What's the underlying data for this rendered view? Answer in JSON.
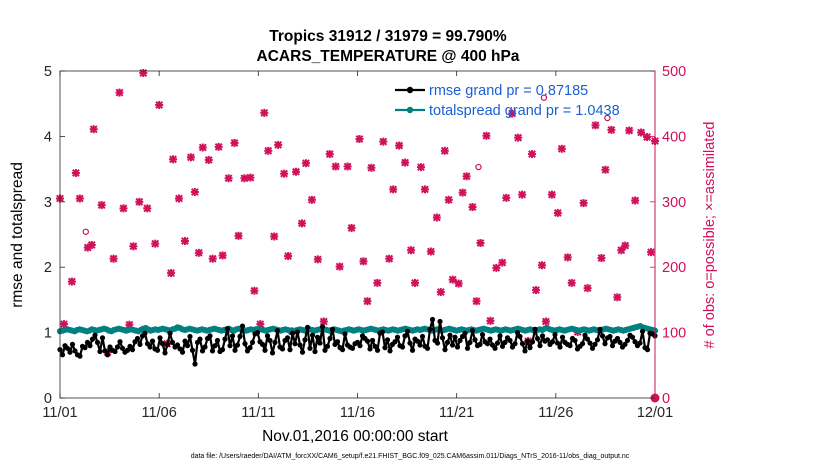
{
  "chart_data": {
    "type": "line",
    "title_line1": "Tropics 31912 / 31979 = 99.790%",
    "title_line2": "ACARS_TEMPERATURE @ 400 hPa",
    "xlabel": "Nov.01,2016 00:00:00 start",
    "ylabel_left": "rmse and totalspread",
    "ylabel_right": "# of obs: o=possible; ×=assimilated",
    "footnote": "data file: /Users/raeder/DAI/ATM_forcXX/CAM6_setup/f.e21.FHIST_BGC.f09_025.CAM6assim.011/Diags_NTrS_2016-11/obs_diag_output.nc",
    "x_ticks": [
      "11/01",
      "11/06",
      "11/11",
      "11/16",
      "11/21",
      "11/26",
      "12/01"
    ],
    "xlim_days": [
      0,
      30
    ],
    "ylim_left": [
      0,
      5
    ],
    "y_ticks_left": [
      "0",
      "1",
      "2",
      "3",
      "4",
      "5"
    ],
    "ylim_right": [
      0,
      500
    ],
    "y_ticks_right": [
      "0",
      "100",
      "200",
      "300",
      "400",
      "500"
    ],
    "legend": {
      "placement": "top-right",
      "entries": [
        "rmse grand pr = 0.87185",
        "totalspread grand pr = 1.0438"
      ]
    },
    "colors": {
      "rmse": "#000000",
      "spread": "#008080",
      "obs": "#d0105a"
    },
    "series": [
      {
        "name": "rmse",
        "axis": "left",
        "values": [
          0.74,
          0.66,
          0.8,
          0.76,
          0.7,
          0.82,
          0.72,
          0.66,
          0.64,
          0.79,
          0.77,
          0.85,
          0.8,
          0.9,
          0.96,
          0.85,
          0.71,
          0.92,
          0.72,
          0.66,
          0.78,
          0.73,
          0.71,
          0.78,
          0.86,
          0.76,
          0.7,
          0.73,
          0.79,
          0.74,
          0.86,
          0.91,
          0.82,
          0.95,
          0.99,
          0.83,
          0.78,
          0.87,
          0.75,
          0.73,
          0.92,
          0.83,
          0.69,
          0.82,
          0.99,
          0.85,
          0.78,
          0.81,
          0.75,
          0.7,
          0.87,
          0.8,
          0.94,
          0.73,
          0.52,
          0.85,
          0.9,
          0.72,
          0.78,
          0.91,
          0.95,
          0.72,
          0.8,
          0.88,
          0.71,
          0.74,
          0.9,
          1.06,
          0.8,
          0.95,
          0.73,
          0.81,
          0.94,
          1.1,
          0.83,
          0.72,
          0.77,
          0.85,
          0.98,
          1.0,
          0.86,
          0.82,
          0.73,
          0.95,
          0.88,
          0.69,
          0.85,
          1.03,
          0.78,
          0.75,
          0.88,
          0.92,
          0.74,
          0.99,
          0.83,
          1.01,
          0.81,
          0.7,
          0.89,
          1.08,
          0.76,
          0.96,
          0.71,
          0.93,
          0.84,
          1.09,
          0.73,
          0.79,
          0.91,
          1.05,
          0.82,
          0.86,
          0.77,
          0.74,
          0.98,
          0.81,
          0.78,
          0.76,
          0.83,
          0.85,
          0.8,
          0.95,
          0.91,
          0.87,
          0.75,
          0.88,
          0.79,
          0.73,
          0.99,
          1.01,
          0.77,
          0.89,
          0.72,
          0.82,
          0.86,
          0.93,
          0.8,
          0.78,
          0.95,
          1.02,
          0.84,
          0.73,
          0.9,
          0.87,
          0.81,
          0.94,
          0.79,
          0.76,
          1.05,
          1.2,
          0.88,
          0.84,
          1.17,
          0.92,
          0.74,
          0.85,
          0.96,
          0.81,
          0.93,
          0.78,
          0.88,
          0.94,
          0.99,
          0.76,
          0.85,
          1.03,
          0.89,
          0.8,
          0.82,
          0.97,
          0.86,
          0.83,
          0.9,
          0.81,
          0.76,
          0.84,
          0.95,
          0.79,
          0.85,
          0.92,
          0.88,
          0.78,
          0.83,
          1.0,
          0.94,
          0.83,
          0.72,
          0.87,
          0.77,
          0.86,
          1.05,
          0.91,
          0.8,
          0.95,
          0.87,
          0.89,
          0.82,
          0.86,
          0.97,
          0.84,
          0.78,
          0.93,
          0.85,
          0.82,
          0.8,
          0.91,
          0.88,
          0.75,
          0.79,
          0.83,
          0.96,
          0.9,
          0.84,
          0.76,
          0.82,
          0.89,
          1.05,
          0.95,
          0.83,
          0.92,
          0.94,
          0.8,
          0.87,
          0.91,
          0.85,
          0.78,
          0.82,
          0.88,
          0.96,
          0.93,
          0.86,
          0.8,
          0.84,
          1.02,
          0.77,
          0.74,
          0.99,
          0.98,
          0.95
        ]
      },
      {
        "name": "totalspread",
        "axis": "left",
        "values": [
          1.02,
          1.03,
          1.04,
          1.05,
          1.04,
          1.03,
          1.02,
          1.04,
          1.05,
          1.04,
          1.03,
          1.02,
          1.03,
          1.05,
          1.04,
          1.03,
          1.04,
          1.05,
          1.06,
          1.05,
          1.03,
          1.02,
          1.04,
          1.05,
          1.06,
          1.05,
          1.04,
          1.03,
          1.04,
          1.05,
          1.04,
          1.03,
          1.02,
          1.04,
          1.06,
          1.07,
          1.05,
          1.03,
          1.04,
          1.05,
          1.04,
          1.05,
          1.06,
          1.05,
          1.04,
          1.03,
          1.05,
          1.06,
          1.08,
          1.07,
          1.05,
          1.04,
          1.05,
          1.06,
          1.05,
          1.04,
          1.03,
          1.04,
          1.05,
          1.04,
          1.03,
          1.04,
          1.05,
          1.06,
          1.05,
          1.04,
          1.03,
          1.04,
          1.05,
          1.06,
          1.04,
          1.03,
          1.05,
          1.06,
          1.05,
          1.04,
          1.03,
          1.04,
          1.05,
          1.04,
          1.05,
          1.06,
          1.05,
          1.04,
          1.03,
          1.04,
          1.05,
          1.06,
          1.05,
          1.04,
          1.03,
          1.04,
          1.05,
          1.04,
          1.03,
          1.02,
          1.03,
          1.04,
          1.05,
          1.04,
          1.03,
          1.04,
          1.05,
          1.04,
          1.03,
          1.04,
          1.05,
          1.06,
          1.05,
          1.04,
          1.03,
          1.04,
          1.05,
          1.04,
          1.03,
          1.02,
          1.03,
          1.04,
          1.05,
          1.04,
          1.03,
          1.04,
          1.05,
          1.04,
          1.03,
          1.04,
          1.05,
          1.06,
          1.05,
          1.04,
          1.03,
          1.04,
          1.05,
          1.04,
          1.03,
          1.04,
          1.05,
          1.04,
          1.03,
          1.04,
          1.05,
          1.06,
          1.05,
          1.04,
          1.03,
          1.04,
          1.05,
          1.04,
          1.05,
          1.06,
          1.05,
          1.04,
          1.03,
          1.04,
          1.05,
          1.04,
          1.03,
          1.04,
          1.05,
          1.06,
          1.05,
          1.04,
          1.03,
          1.04,
          1.05,
          1.04,
          1.03,
          1.04,
          1.05,
          1.04,
          1.03,
          1.04,
          1.05,
          1.06,
          1.05,
          1.04,
          1.03,
          1.04,
          1.05,
          1.04,
          1.03,
          1.04,
          1.05,
          1.04,
          1.03,
          1.04,
          1.05,
          1.06,
          1.05,
          1.04,
          1.03,
          1.04,
          1.05,
          1.04,
          1.03,
          1.04,
          1.05,
          1.04,
          1.06,
          1.07,
          1.05,
          1.04,
          1.03,
          1.04,
          1.05,
          1.04,
          1.03,
          1.04,
          1.05,
          1.06,
          1.05,
          1.04,
          1.03,
          1.04,
          1.05,
          1.04,
          1.03,
          1.04,
          1.05,
          1.04,
          1.03,
          1.04,
          1.05,
          1.06,
          1.05,
          1.04,
          1.03,
          1.04,
          1.05,
          1.04,
          1.03,
          1.04,
          1.05,
          1.06,
          1.07,
          1.08,
          1.09,
          1.1,
          1.08,
          1.07,
          1.06,
          1.05,
          1.04,
          1.03
        ]
      },
      {
        "name": "obs_count",
        "axis": "right",
        "points": [
          [
            0.0,
            305
          ],
          [
            0.2,
            113
          ],
          [
            0.6,
            178
          ],
          [
            0.8,
            344
          ],
          [
            1.0,
            305
          ],
          [
            1.4,
            230
          ],
          [
            1.6,
            234
          ],
          [
            1.7,
            411
          ],
          [
            2.1,
            295
          ],
          [
            2.4,
            70
          ],
          [
            2.7,
            213
          ],
          [
            3.0,
            467
          ],
          [
            3.2,
            290
          ],
          [
            3.5,
            112
          ],
          [
            3.7,
            232
          ],
          [
            4.0,
            300
          ],
          [
            4.2,
            497
          ],
          [
            4.4,
            290
          ],
          [
            4.8,
            236
          ],
          [
            5.0,
            448
          ],
          [
            5.4,
            83
          ],
          [
            5.6,
            191
          ],
          [
            5.7,
            365
          ],
          [
            6.0,
            305
          ],
          [
            6.3,
            240
          ],
          [
            6.6,
            368
          ],
          [
            6.8,
            315
          ],
          [
            7.0,
            222
          ],
          [
            7.2,
            383
          ],
          [
            7.5,
            364
          ],
          [
            7.7,
            213
          ],
          [
            8.0,
            384
          ],
          [
            8.2,
            218
          ],
          [
            8.5,
            336
          ],
          [
            8.8,
            390
          ],
          [
            9.0,
            248
          ],
          [
            9.3,
            336
          ],
          [
            9.6,
            337
          ],
          [
            9.8,
            164
          ],
          [
            10.1,
            113
          ],
          [
            10.3,
            436
          ],
          [
            10.5,
            378
          ],
          [
            10.8,
            247
          ],
          [
            11.0,
            387
          ],
          [
            11.3,
            343
          ],
          [
            11.5,
            217
          ],
          [
            11.7,
            102
          ],
          [
            11.9,
            346
          ],
          [
            12.2,
            267
          ],
          [
            12.4,
            359
          ],
          [
            12.7,
            303
          ],
          [
            13.0,
            212
          ],
          [
            13.3,
            117
          ],
          [
            13.6,
            373
          ],
          [
            13.9,
            354
          ],
          [
            14.1,
            201
          ],
          [
            14.5,
            354
          ],
          [
            14.7,
            260
          ],
          [
            15.1,
            396
          ],
          [
            15.3,
            209
          ],
          [
            15.5,
            148
          ],
          [
            15.7,
            352
          ],
          [
            16.0,
            176
          ],
          [
            16.3,
            392
          ],
          [
            16.6,
            213
          ],
          [
            16.8,
            319
          ],
          [
            17.1,
            386
          ],
          [
            17.4,
            360
          ],
          [
            17.7,
            226
          ],
          [
            17.9,
            176
          ],
          [
            18.2,
            353
          ],
          [
            18.4,
            319
          ],
          [
            18.7,
            224
          ],
          [
            19.0,
            276
          ],
          [
            19.2,
            162
          ],
          [
            19.4,
            378
          ],
          [
            19.6,
            303
          ],
          [
            19.8,
            181
          ],
          [
            20.1,
            175
          ],
          [
            20.3,
            314
          ],
          [
            20.5,
            339
          ],
          [
            20.8,
            292
          ],
          [
            21.0,
            148
          ],
          [
            21.2,
            237
          ],
          [
            21.5,
            401
          ],
          [
            21.7,
            118
          ],
          [
            22.0,
            199
          ],
          [
            22.3,
            207
          ],
          [
            22.5,
            306
          ],
          [
            22.8,
            435
          ],
          [
            23.1,
            398
          ],
          [
            23.3,
            311
          ],
          [
            23.6,
            87
          ],
          [
            23.8,
            373
          ],
          [
            24.0,
            165
          ],
          [
            24.3,
            203
          ],
          [
            24.5,
            117
          ],
          [
            24.8,
            311
          ],
          [
            25.1,
            283
          ],
          [
            25.3,
            381
          ],
          [
            25.6,
            215
          ],
          [
            25.8,
            176
          ],
          [
            26.1,
            101
          ],
          [
            26.4,
            298
          ],
          [
            26.6,
            168
          ],
          [
            27.0,
            417
          ],
          [
            27.3,
            214
          ],
          [
            27.5,
            349
          ],
          [
            27.8,
            410
          ],
          [
            28.1,
            154
          ],
          [
            28.3,
            226
          ],
          [
            28.5,
            233
          ],
          [
            28.7,
            409
          ],
          [
            29.0,
            302
          ],
          [
            29.3,
            406
          ],
          [
            29.6,
            399
          ],
          [
            29.8,
            223
          ],
          [
            30.0,
            393
          ]
        ],
        "possible_markers": [
          [
            1.3,
            245
          ],
          [
            21.1,
            344
          ],
          [
            24.4,
            450
          ],
          [
            27.6,
            419
          ]
        ],
        "zero_marker": [
          30.0,
          0
        ]
      }
    ]
  }
}
